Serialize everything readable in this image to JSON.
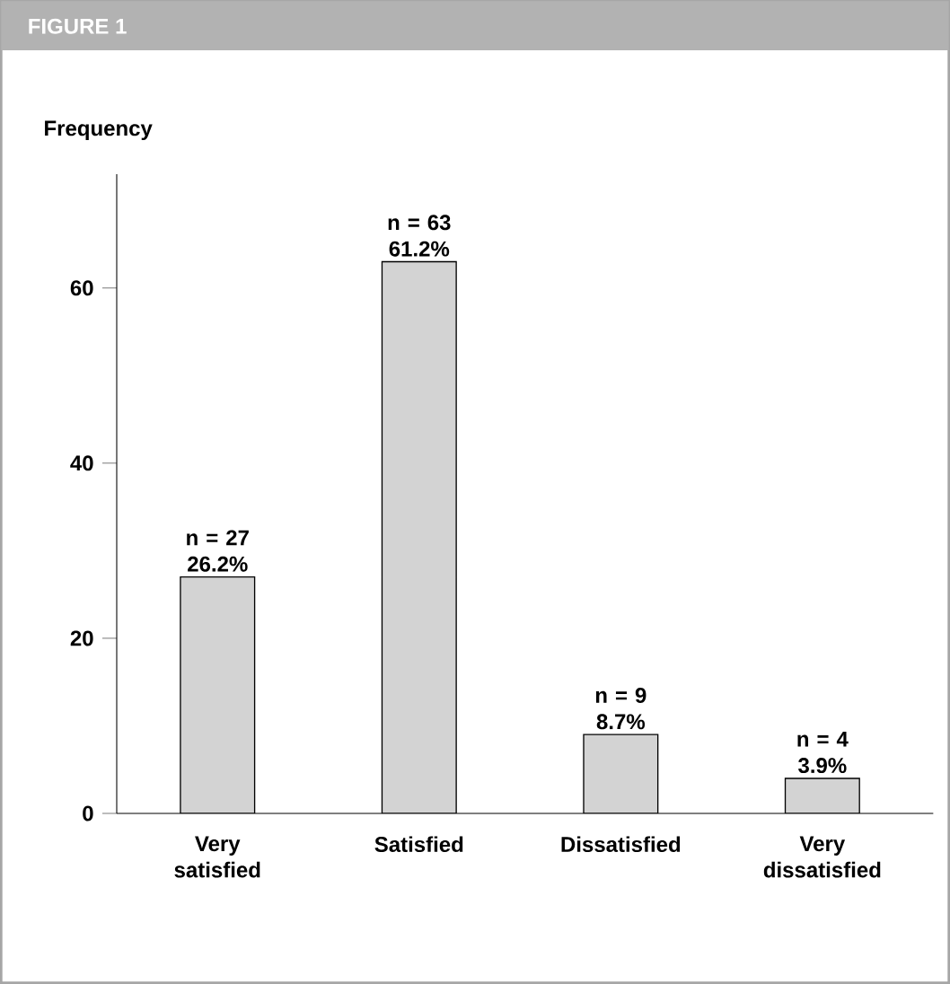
{
  "chart_data": {
    "type": "bar",
    "title": "FIGURE 1",
    "ylabel": "Frequency",
    "categories": [
      "Very satisfied",
      "Satisfied",
      "Dissatisfied",
      "Very dissatisfied"
    ],
    "values": [
      27,
      63,
      9,
      4
    ],
    "color": "#d3d3d3",
    "value_labels": [
      "n = 27 26.2%",
      "n = 63 61.2%",
      "n = 9 8.7%",
      "n = 4 3.9%"
    ],
    "ylim": [
      0,
      73
    ],
    "yticks": [
      0,
      20,
      40,
      60
    ]
  }
}
